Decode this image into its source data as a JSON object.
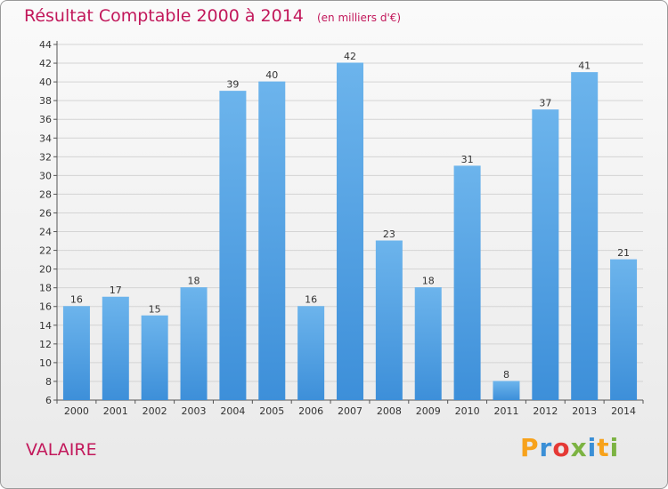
{
  "header": {
    "title": "Résultat Comptable 2000 à 2014",
    "subtitle": "(en milliers d'€)"
  },
  "commune": "VALAIRE",
  "logo": {
    "letters": [
      "P",
      "r",
      "o",
      "x",
      "i",
      "t",
      "i"
    ],
    "colors": [
      "#f7a21b",
      "#3a8fd6",
      "#e53935",
      "#7cb342",
      "#3a8fd6",
      "#f7a21b",
      "#7cb342"
    ]
  },
  "chart_data": {
    "type": "bar",
    "title": "Résultat Comptable 2000 à 2014",
    "subtitle": "(en milliers d'€)",
    "categories": [
      "2000",
      "2001",
      "2002",
      "2003",
      "2004",
      "2005",
      "2006",
      "2007",
      "2008",
      "2009",
      "2010",
      "2011",
      "2012",
      "2013",
      "2014"
    ],
    "values": [
      16,
      17,
      15,
      18,
      39,
      40,
      16,
      42,
      23,
      18,
      31,
      8,
      37,
      41,
      21
    ],
    "ylim": [
      6,
      44
    ],
    "yticks": [
      6,
      8,
      10,
      12,
      14,
      16,
      18,
      20,
      22,
      24,
      26,
      28,
      30,
      32,
      34,
      36,
      38,
      40,
      42,
      44
    ],
    "grid": true,
    "bar_color": "#3d8fd9",
    "bar_color_light": "#6cb4ec"
  }
}
